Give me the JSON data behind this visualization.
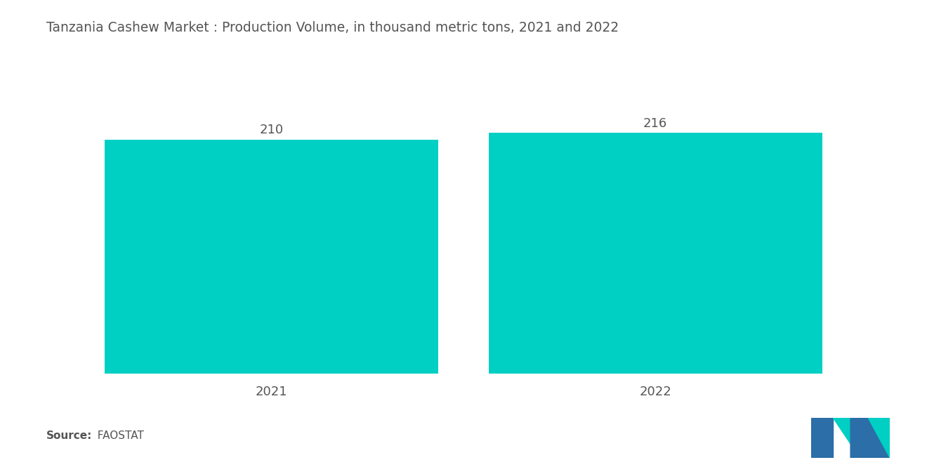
{
  "title": "Tanzania Cashew Market : Production Volume, in thousand metric tons, 2021 and 2022",
  "categories": [
    "2021",
    "2022"
  ],
  "values": [
    210,
    216
  ],
  "bar_color": "#00CFC4",
  "background_color": "#ffffff",
  "title_fontsize": 13.5,
  "label_fontsize": 13,
  "value_fontsize": 13,
  "source_bold": "Source:",
  "source_normal": "  FAOSTAT",
  "source_fontsize": 11,
  "ylim": [
    0,
    260
  ],
  "bar_positions": [
    0.27,
    0.73
  ],
  "bar_width": 0.4,
  "logo_blue": "#2B6EA8",
  "logo_teal": "#00CFC4"
}
